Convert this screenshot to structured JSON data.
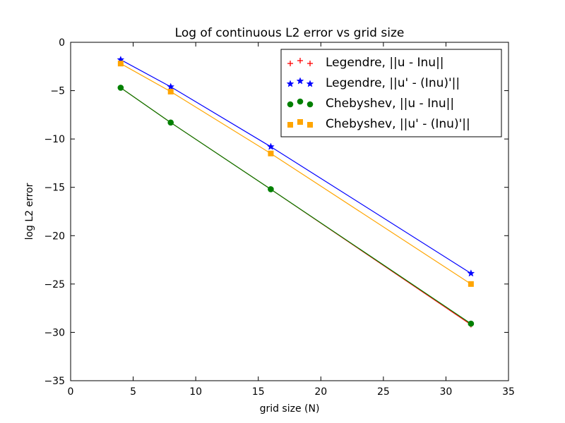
{
  "chart_data": {
    "type": "line",
    "title": "Log of continuous L2 error vs grid size",
    "xlabel": "grid size (N)",
    "ylabel": "log L2 error",
    "xlim": [
      0,
      35
    ],
    "ylim": [
      -35,
      0
    ],
    "xticks": [
      0,
      5,
      10,
      15,
      20,
      25,
      30,
      35
    ],
    "yticks": [
      0,
      -5,
      -10,
      -15,
      -20,
      -25,
      -30,
      -35
    ],
    "x": [
      4,
      8,
      16,
      32
    ],
    "grid": false,
    "legend_position": "top-right",
    "series": [
      {
        "name": "Legendre, ||u - Inu||",
        "values": [
          -4.7,
          -8.3,
          -15.2,
          -29.2
        ],
        "color": "#ff0000",
        "marker": "plus"
      },
      {
        "name": "Legendre, ||u' - (Inu)'||",
        "values": [
          -1.8,
          -4.6,
          -10.8,
          -23.9
        ],
        "color": "#0000ff",
        "marker": "star"
      },
      {
        "name": "Chebyshev, ||u - Inu||",
        "values": [
          -4.7,
          -8.3,
          -15.2,
          -29.1
        ],
        "color": "#008000",
        "marker": "circle"
      },
      {
        "name": "Chebyshev, ||u' - (Inu)'||",
        "values": [
          -2.2,
          -5.1,
          -11.5,
          -25.0
        ],
        "color": "#ffa500",
        "marker": "square"
      }
    ]
  }
}
